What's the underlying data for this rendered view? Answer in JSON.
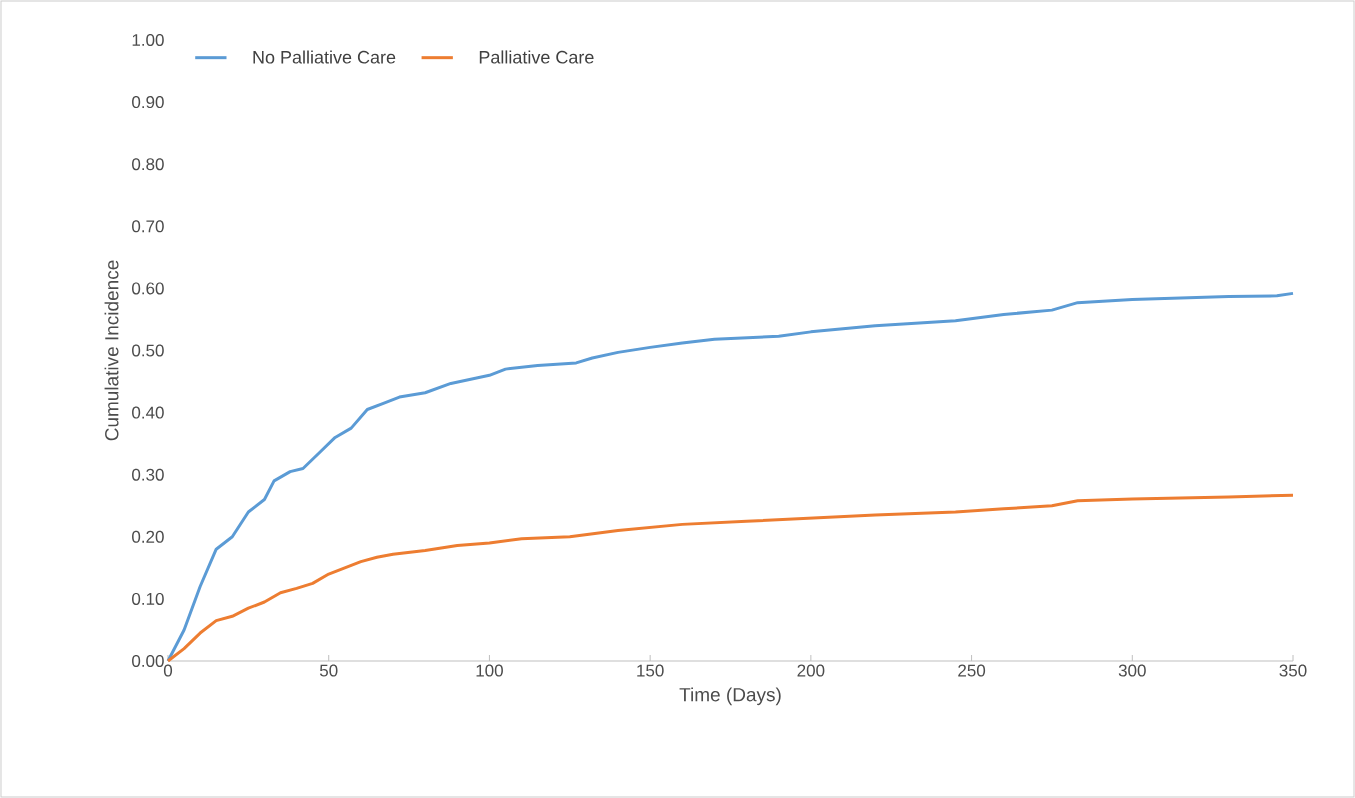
{
  "chart_data": {
    "type": "line",
    "xlabel": "Time (Days)",
    "ylabel": "Cumulative Incidence",
    "xlim": [
      0,
      350
    ],
    "ylim": [
      0,
      1
    ],
    "xticks": [
      0,
      50,
      100,
      150,
      200,
      250,
      300,
      350
    ],
    "yticks": [
      {
        "value": 0,
        "label": "0.00"
      },
      {
        "value": 0.1,
        "label": "0.10"
      },
      {
        "value": 0.2,
        "label": "0.20"
      },
      {
        "value": 0.3,
        "label": "0.30"
      },
      {
        "value": 0.4,
        "label": "0.40"
      },
      {
        "value": 0.5,
        "label": "0.50"
      },
      {
        "value": 0.6,
        "label": "0.60"
      },
      {
        "value": 0.7,
        "label": "0.70"
      },
      {
        "value": 0.8,
        "label": "0.80"
      },
      {
        "value": 0.9,
        "label": "0.90"
      },
      {
        "value": 1,
        "label": "1.00"
      }
    ],
    "legend": "top left",
    "grid": false,
    "series": [
      {
        "name": "No Palliative Care",
        "color": "#5b9bd5",
        "x": [
          0,
          5,
          10,
          15,
          20,
          25,
          30,
          33,
          38,
          42,
          47,
          52,
          57,
          62,
          67,
          72,
          80,
          88,
          100,
          105,
          115,
          127,
          132,
          140,
          150,
          160,
          170,
          190,
          200,
          220,
          245,
          260,
          275,
          283,
          300,
          330,
          345,
          350
        ],
        "values": [
          0,
          0.05,
          0.12,
          0.18,
          0.2,
          0.24,
          0.26,
          0.29,
          0.305,
          0.31,
          0.335,
          0.36,
          0.375,
          0.405,
          0.415,
          0.425,
          0.432,
          0.447,
          0.46,
          0.47,
          0.476,
          0.48,
          0.488,
          0.497,
          0.505,
          0.512,
          0.518,
          0.523,
          0.53,
          0.54,
          0.548,
          0.558,
          0.565,
          0.577,
          0.582,
          0.587,
          0.588,
          0.592
        ]
      },
      {
        "name": "Palliative Care",
        "color": "#ed7d31",
        "x": [
          0,
          5,
          10,
          15,
          20,
          25,
          30,
          35,
          40,
          45,
          50,
          55,
          60,
          65,
          70,
          80,
          90,
          100,
          110,
          125,
          140,
          160,
          180,
          200,
          220,
          245,
          260,
          275,
          283,
          300,
          330,
          350
        ],
        "values": [
          0,
          0.02,
          0.045,
          0.065,
          0.072,
          0.085,
          0.095,
          0.11,
          0.117,
          0.125,
          0.14,
          0.15,
          0.16,
          0.167,
          0.172,
          0.178,
          0.186,
          0.19,
          0.197,
          0.2,
          0.21,
          0.22,
          0.225,
          0.23,
          0.235,
          0.24,
          0.245,
          0.25,
          0.258,
          0.261,
          0.264,
          0.267
        ]
      }
    ]
  }
}
